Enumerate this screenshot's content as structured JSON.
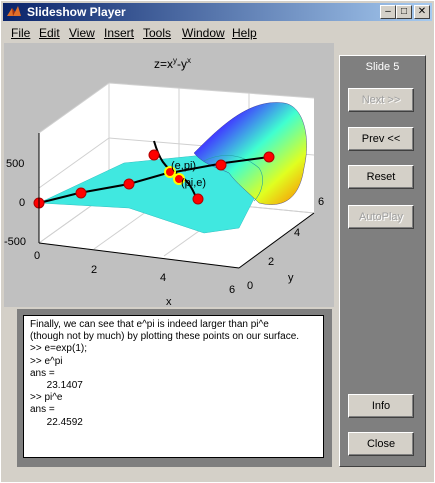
{
  "window": {
    "title": "Slideshow Player"
  },
  "menu": {
    "items": [
      "File",
      "Edit",
      "View",
      "Insert",
      "Tools",
      "Window",
      "Help"
    ]
  },
  "plot": {
    "title_base": "z=x",
    "title_sup1": "y",
    "title_mid": "-y",
    "title_sup2": "x",
    "z_ticks": [
      "500",
      "0",
      "-500"
    ],
    "x_ticks": [
      "0",
      "2",
      "4",
      "6"
    ],
    "y_ticks": [
      "0",
      "2",
      "4",
      "6"
    ],
    "x_label": "x",
    "y_label": "y",
    "annot_epi": "(e,pi)",
    "annot_pie": "(pi,e)"
  },
  "command": {
    "lines": [
      "Finally, we can see that e^pi is indeed larger than pi^e",
      "(though not by much) by plotting these points on our surface.",
      ">> e=exp(1);",
      ">> e^pi",
      "ans =",
      "      23.1407",
      ">> pi^e",
      "ans =",
      "      22.4592"
    ]
  },
  "side": {
    "slide_label": "Slide 5",
    "next": "Next >>",
    "prev": "Prev <<",
    "reset": "Reset",
    "autoplay": "AutoPlay",
    "info": "Info",
    "close": "Close"
  },
  "colors": {
    "title_start": "#0a246a",
    "surface": "#40e0e0",
    "marker": "#ff0000"
  }
}
